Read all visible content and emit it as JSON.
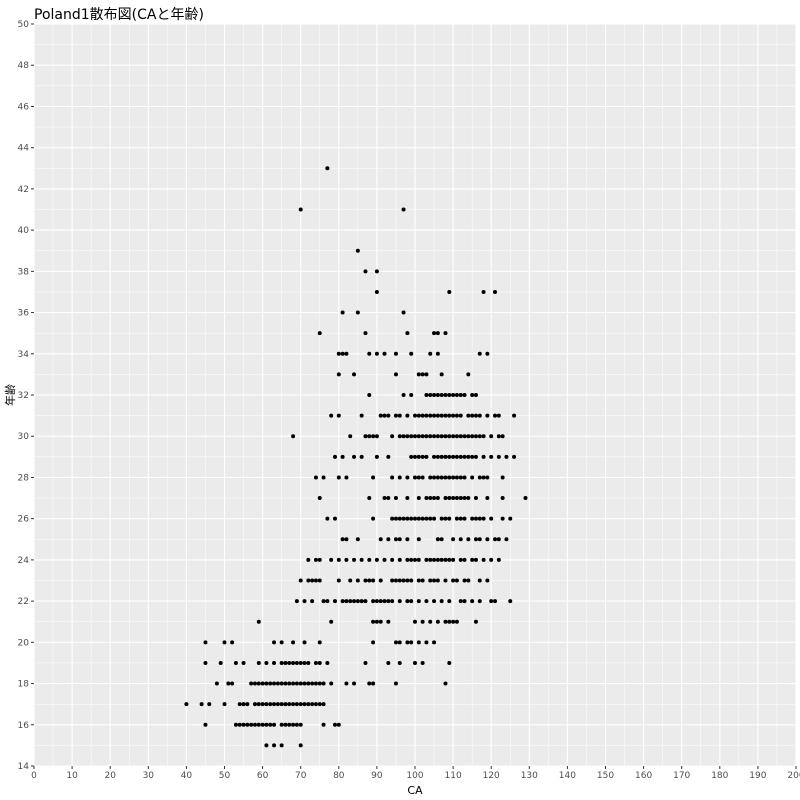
{
  "chart_data": {
    "type": "scatter",
    "title": "Poland1散布図(CAと年齢)",
    "xlabel": "CA",
    "ylabel": "年齢",
    "xlim": [
      0,
      200
    ],
    "ylim": [
      14,
      50
    ],
    "xticks": [
      0,
      10,
      20,
      30,
      40,
      50,
      60,
      70,
      80,
      90,
      100,
      110,
      120,
      130,
      140,
      150,
      160,
      170,
      180,
      190,
      200
    ],
    "yticks": [
      14,
      16,
      18,
      20,
      22,
      24,
      26,
      28,
      30,
      32,
      34,
      36,
      38,
      40,
      42,
      44,
      46,
      48,
      50
    ],
    "grid": true,
    "background": "#ebebeb",
    "point_color": "#000000",
    "points": [
      [
        40,
        17
      ],
      [
        44,
        17
      ],
      [
        45,
        16
      ],
      [
        45,
        19
      ],
      [
        45,
        20
      ],
      [
        46,
        17
      ],
      [
        48,
        18
      ],
      [
        49,
        19
      ],
      [
        50,
        17
      ],
      [
        50,
        20
      ],
      [
        51,
        18
      ],
      [
        52,
        18
      ],
      [
        52,
        20
      ],
      [
        53,
        16
      ],
      [
        53,
        19
      ],
      [
        54,
        16
      ],
      [
        54,
        17
      ],
      [
        55,
        16
      ],
      [
        55,
        17
      ],
      [
        55,
        19
      ],
      [
        56,
        16
      ],
      [
        56,
        17
      ],
      [
        57,
        16
      ],
      [
        57,
        18
      ],
      [
        58,
        16
      ],
      [
        58,
        17
      ],
      [
        58,
        18
      ],
      [
        59,
        16
      ],
      [
        59,
        17
      ],
      [
        59,
        18
      ],
      [
        59,
        19
      ],
      [
        59,
        21
      ],
      [
        60,
        16
      ],
      [
        60,
        17
      ],
      [
        60,
        18
      ],
      [
        61,
        15
      ],
      [
        61,
        16
      ],
      [
        61,
        17
      ],
      [
        61,
        18
      ],
      [
        61,
        19
      ],
      [
        62,
        16
      ],
      [
        62,
        17
      ],
      [
        62,
        18
      ],
      [
        63,
        15
      ],
      [
        63,
        16
      ],
      [
        63,
        17
      ],
      [
        63,
        18
      ],
      [
        63,
        19
      ],
      [
        63,
        20
      ],
      [
        64,
        17
      ],
      [
        64,
        18
      ],
      [
        65,
        15
      ],
      [
        65,
        16
      ],
      [
        65,
        17
      ],
      [
        65,
        18
      ],
      [
        65,
        19
      ],
      [
        65,
        20
      ],
      [
        66,
        16
      ],
      [
        66,
        17
      ],
      [
        66,
        18
      ],
      [
        66,
        19
      ],
      [
        67,
        16
      ],
      [
        67,
        17
      ],
      [
        67,
        18
      ],
      [
        67,
        19
      ],
      [
        68,
        16
      ],
      [
        68,
        17
      ],
      [
        68,
        18
      ],
      [
        68,
        19
      ],
      [
        68,
        20
      ],
      [
        68,
        30
      ],
      [
        69,
        16
      ],
      [
        69,
        17
      ],
      [
        69,
        18
      ],
      [
        69,
        19
      ],
      [
        69,
        22
      ],
      [
        70,
        15
      ],
      [
        70,
        16
      ],
      [
        70,
        17
      ],
      [
        70,
        18
      ],
      [
        70,
        19
      ],
      [
        70,
        23
      ],
      [
        70,
        41
      ],
      [
        71,
        17
      ],
      [
        71,
        18
      ],
      [
        71,
        19
      ],
      [
        71,
        20
      ],
      [
        71,
        22
      ],
      [
        72,
        17
      ],
      [
        72,
        18
      ],
      [
        72,
        19
      ],
      [
        72,
        23
      ],
      [
        72,
        24
      ],
      [
        73,
        17
      ],
      [
        73,
        18
      ],
      [
        73,
        22
      ],
      [
        73,
        23
      ],
      [
        74,
        17
      ],
      [
        74,
        18
      ],
      [
        74,
        19
      ],
      [
        74,
        23
      ],
      [
        74,
        24
      ],
      [
        74,
        28
      ],
      [
        75,
        17
      ],
      [
        75,
        18
      ],
      [
        75,
        19
      ],
      [
        75,
        20
      ],
      [
        75,
        23
      ],
      [
        75,
        24
      ],
      [
        75,
        27
      ],
      [
        75,
        35
      ],
      [
        76,
        16
      ],
      [
        76,
        17
      ],
      [
        76,
        18
      ],
      [
        76,
        22
      ],
      [
        76,
        28
      ],
      [
        77,
        19
      ],
      [
        77,
        22
      ],
      [
        77,
        26
      ],
      [
        77,
        43
      ],
      [
        78,
        18
      ],
      [
        78,
        21
      ],
      [
        78,
        24
      ],
      [
        78,
        31
      ],
      [
        79,
        16
      ],
      [
        79,
        22
      ],
      [
        79,
        26
      ],
      [
        79,
        29
      ],
      [
        80,
        16
      ],
      [
        80,
        23
      ],
      [
        80,
        24
      ],
      [
        80,
        28
      ],
      [
        80,
        31
      ],
      [
        80,
        33
      ],
      [
        80,
        34
      ],
      [
        81,
        22
      ],
      [
        81,
        25
      ],
      [
        81,
        29
      ],
      [
        81,
        36
      ],
      [
        81,
        34
      ],
      [
        82,
        18
      ],
      [
        82,
        22
      ],
      [
        82,
        24
      ],
      [
        82,
        25
      ],
      [
        82,
        28
      ],
      [
        82,
        34
      ],
      [
        83,
        22
      ],
      [
        83,
        30
      ],
      [
        83,
        23
      ],
      [
        84,
        18
      ],
      [
        84,
        22
      ],
      [
        84,
        24
      ],
      [
        84,
        29
      ],
      [
        84,
        33
      ],
      [
        85,
        22
      ],
      [
        85,
        23
      ],
      [
        85,
        25
      ],
      [
        85,
        36
      ],
      [
        85,
        39
      ],
      [
        86,
        22
      ],
      [
        86,
        24
      ],
      [
        86,
        29
      ],
      [
        86,
        31
      ],
      [
        87,
        19
      ],
      [
        87,
        22
      ],
      [
        87,
        23
      ],
      [
        87,
        30
      ],
      [
        87,
        35
      ],
      [
        87,
        38
      ],
      [
        88,
        18
      ],
      [
        88,
        23
      ],
      [
        88,
        24
      ],
      [
        88,
        27
      ],
      [
        88,
        30
      ],
      [
        88,
        32
      ],
      [
        88,
        34
      ],
      [
        89,
        18
      ],
      [
        89,
        20
      ],
      [
        89,
        21
      ],
      [
        89,
        22
      ],
      [
        89,
        23
      ],
      [
        89,
        26
      ],
      [
        89,
        28
      ],
      [
        89,
        30
      ],
      [
        90,
        21
      ],
      [
        90,
        22
      ],
      [
        90,
        24
      ],
      [
        90,
        29
      ],
      [
        90,
        30
      ],
      [
        90,
        34
      ],
      [
        90,
        37
      ],
      [
        90,
        38
      ],
      [
        91,
        21
      ],
      [
        91,
        22
      ],
      [
        91,
        23
      ],
      [
        91,
        25
      ],
      [
        91,
        31
      ],
      [
        92,
        22
      ],
      [
        92,
        24
      ],
      [
        92,
        27
      ],
      [
        92,
        31
      ],
      [
        92,
        34
      ],
      [
        93,
        19
      ],
      [
        93,
        21
      ],
      [
        93,
        22
      ],
      [
        93,
        25
      ],
      [
        93,
        27
      ],
      [
        93,
        29
      ],
      [
        93,
        31
      ],
      [
        94,
        22
      ],
      [
        94,
        23
      ],
      [
        94,
        24
      ],
      [
        94,
        26
      ],
      [
        94,
        28
      ],
      [
        94,
        30
      ],
      [
        95,
        18
      ],
      [
        95,
        20
      ],
      [
        95,
        23
      ],
      [
        95,
        25
      ],
      [
        95,
        26
      ],
      [
        95,
        27
      ],
      [
        95,
        31
      ],
      [
        95,
        33
      ],
      [
        95,
        34
      ],
      [
        96,
        19
      ],
      [
        96,
        20
      ],
      [
        96,
        22
      ],
      [
        96,
        23
      ],
      [
        96,
        24
      ],
      [
        96,
        25
      ],
      [
        96,
        26
      ],
      [
        96,
        28
      ],
      [
        96,
        30
      ],
      [
        96,
        31
      ],
      [
        97,
        23
      ],
      [
        97,
        26
      ],
      [
        97,
        30
      ],
      [
        97,
        32
      ],
      [
        97,
        36
      ],
      [
        97,
        41
      ],
      [
        98,
        20
      ],
      [
        98,
        22
      ],
      [
        98,
        23
      ],
      [
        98,
        24
      ],
      [
        98,
        25
      ],
      [
        98,
        26
      ],
      [
        98,
        27
      ],
      [
        98,
        28
      ],
      [
        98,
        30
      ],
      [
        98,
        31
      ],
      [
        98,
        35
      ],
      [
        99,
        20
      ],
      [
        99,
        22
      ],
      [
        99,
        23
      ],
      [
        99,
        24
      ],
      [
        99,
        26
      ],
      [
        99,
        29
      ],
      [
        99,
        30
      ],
      [
        99,
        32
      ],
      [
        99,
        34
      ],
      [
        100,
        19
      ],
      [
        100,
        21
      ],
      [
        100,
        24
      ],
      [
        100,
        26
      ],
      [
        100,
        28
      ],
      [
        100,
        29
      ],
      [
        100,
        30
      ],
      [
        100,
        31
      ],
      [
        101,
        20
      ],
      [
        101,
        22
      ],
      [
        101,
        23
      ],
      [
        101,
        24
      ],
      [
        101,
        25
      ],
      [
        101,
        26
      ],
      [
        101,
        27
      ],
      [
        101,
        28
      ],
      [
        101,
        29
      ],
      [
        101,
        30
      ],
      [
        101,
        31
      ],
      [
        101,
        33
      ],
      [
        102,
        19
      ],
      [
        102,
        21
      ],
      [
        102,
        23
      ],
      [
        102,
        26
      ],
      [
        102,
        28
      ],
      [
        102,
        29
      ],
      [
        102,
        30
      ],
      [
        102,
        31
      ],
      [
        102,
        33
      ],
      [
        103,
        20
      ],
      [
        103,
        22
      ],
      [
        103,
        24
      ],
      [
        103,
        26
      ],
      [
        103,
        27
      ],
      [
        103,
        29
      ],
      [
        103,
        30
      ],
      [
        103,
        31
      ],
      [
        103,
        32
      ],
      [
        103,
        33
      ],
      [
        104,
        21
      ],
      [
        104,
        23
      ],
      [
        104,
        24
      ],
      [
        104,
        26
      ],
      [
        104,
        27
      ],
      [
        104,
        28
      ],
      [
        104,
        30
      ],
      [
        104,
        31
      ],
      [
        104,
        32
      ],
      [
        104,
        34
      ],
      [
        105,
        20
      ],
      [
        105,
        22
      ],
      [
        105,
        23
      ],
      [
        105,
        24
      ],
      [
        105,
        26
      ],
      [
        105,
        27
      ],
      [
        105,
        28
      ],
      [
        105,
        29
      ],
      [
        105,
        30
      ],
      [
        105,
        31
      ],
      [
        105,
        32
      ],
      [
        105,
        35
      ],
      [
        106,
        21
      ],
      [
        106,
        23
      ],
      [
        106,
        24
      ],
      [
        106,
        25
      ],
      [
        106,
        27
      ],
      [
        106,
        28
      ],
      [
        106,
        29
      ],
      [
        106,
        30
      ],
      [
        106,
        31
      ],
      [
        106,
        32
      ],
      [
        106,
        34
      ],
      [
        106,
        35
      ],
      [
        107,
        22
      ],
      [
        107,
        24
      ],
      [
        107,
        25
      ],
      [
        107,
        26
      ],
      [
        107,
        28
      ],
      [
        107,
        29
      ],
      [
        107,
        30
      ],
      [
        107,
        31
      ],
      [
        107,
        32
      ],
      [
        107,
        33
      ],
      [
        108,
        18
      ],
      [
        108,
        21
      ],
      [
        108,
        23
      ],
      [
        108,
        24
      ],
      [
        108,
        26
      ],
      [
        108,
        27
      ],
      [
        108,
        28
      ],
      [
        108,
        29
      ],
      [
        108,
        30
      ],
      [
        108,
        31
      ],
      [
        108,
        32
      ],
      [
        108,
        35
      ],
      [
        109,
        19
      ],
      [
        109,
        21
      ],
      [
        109,
        22
      ],
      [
        109,
        24
      ],
      [
        109,
        26
      ],
      [
        109,
        27
      ],
      [
        109,
        28
      ],
      [
        109,
        29
      ],
      [
        109,
        30
      ],
      [
        109,
        31
      ],
      [
        109,
        32
      ],
      [
        109,
        37
      ],
      [
        110,
        21
      ],
      [
        110,
        23
      ],
      [
        110,
        24
      ],
      [
        110,
        25
      ],
      [
        110,
        27
      ],
      [
        110,
        28
      ],
      [
        110,
        29
      ],
      [
        110,
        30
      ],
      [
        110,
        31
      ],
      [
        110,
        32
      ],
      [
        111,
        21
      ],
      [
        111,
        23
      ],
      [
        111,
        26
      ],
      [
        111,
        27
      ],
      [
        111,
        28
      ],
      [
        111,
        29
      ],
      [
        111,
        30
      ],
      [
        111,
        31
      ],
      [
        111,
        32
      ],
      [
        112,
        22
      ],
      [
        112,
        24
      ],
      [
        112,
        25
      ],
      [
        112,
        26
      ],
      [
        112,
        27
      ],
      [
        112,
        28
      ],
      [
        112,
        29
      ],
      [
        112,
        30
      ],
      [
        112,
        31
      ],
      [
        112,
        32
      ],
      [
        113,
        22
      ],
      [
        113,
        23
      ],
      [
        113,
        24
      ],
      [
        113,
        26
      ],
      [
        113,
        27
      ],
      [
        113,
        28
      ],
      [
        113,
        29
      ],
      [
        113,
        30
      ],
      [
        113,
        32
      ],
      [
        114,
        23
      ],
      [
        114,
        25
      ],
      [
        114,
        27
      ],
      [
        114,
        29
      ],
      [
        114,
        30
      ],
      [
        114,
        31
      ],
      [
        114,
        33
      ],
      [
        115,
        22
      ],
      [
        115,
        24
      ],
      [
        115,
        26
      ],
      [
        115,
        28
      ],
      [
        115,
        29
      ],
      [
        115,
        30
      ],
      [
        115,
        31
      ],
      [
        115,
        32
      ],
      [
        116,
        21
      ],
      [
        116,
        24
      ],
      [
        116,
        25
      ],
      [
        116,
        26
      ],
      [
        116,
        27
      ],
      [
        116,
        29
      ],
      [
        116,
        30
      ],
      [
        116,
        31
      ],
      [
        116,
        32
      ],
      [
        117,
        22
      ],
      [
        117,
        23
      ],
      [
        117,
        25
      ],
      [
        117,
        26
      ],
      [
        117,
        28
      ],
      [
        117,
        30
      ],
      [
        117,
        31
      ],
      [
        117,
        34
      ],
      [
        118,
        24
      ],
      [
        118,
        26
      ],
      [
        118,
        28
      ],
      [
        118,
        29
      ],
      [
        118,
        30
      ],
      [
        118,
        37
      ],
      [
        119,
        23
      ],
      [
        119,
        25
      ],
      [
        119,
        27
      ],
      [
        119,
        28
      ],
      [
        119,
        31
      ],
      [
        119,
        34
      ],
      [
        120,
        22
      ],
      [
        120,
        24
      ],
      [
        120,
        26
      ],
      [
        120,
        29
      ],
      [
        120,
        30
      ],
      [
        121,
        22
      ],
      [
        121,
        25
      ],
      [
        121,
        31
      ],
      [
        121,
        37
      ],
      [
        122,
        24
      ],
      [
        122,
        25
      ],
      [
        122,
        29
      ],
      [
        122,
        30
      ],
      [
        122,
        31
      ],
      [
        123,
        26
      ],
      [
        123,
        27
      ],
      [
        123,
        28
      ],
      [
        123,
        30
      ],
      [
        124,
        25
      ],
      [
        124,
        29
      ],
      [
        125,
        22
      ],
      [
        125,
        26
      ],
      [
        126,
        29
      ],
      [
        126,
        31
      ],
      [
        129,
        27
      ]
    ]
  }
}
